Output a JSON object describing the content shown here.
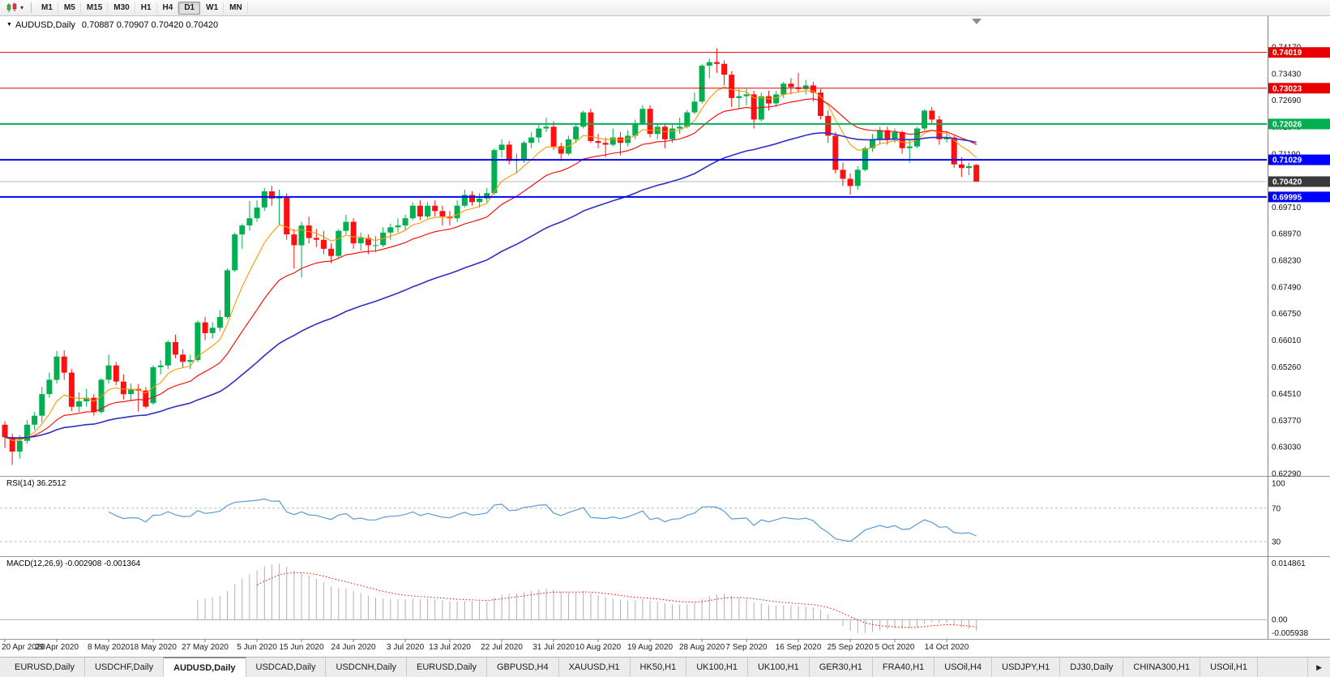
{
  "toolbar": {
    "chart_type_icon": "candlestick-chart-icon",
    "dropdown_icon": "▾",
    "timeframes": [
      "M1",
      "M5",
      "M15",
      "M30",
      "H1",
      "H4",
      "D1",
      "W1",
      "MN"
    ],
    "active_timeframe": "D1"
  },
  "chart": {
    "symbol_label": "AUDUSD,Daily",
    "ohlc_label": "0.70887 0.70907 0.70420 0.70420",
    "dropdown_icon": "▼"
  },
  "chart_data": {
    "type": "candlestick",
    "symbol": "AUDUSD",
    "timeframe": "Daily",
    "title": "AUDUSD,Daily",
    "ohlc_current": {
      "open": 0.70887,
      "high": 0.70907,
      "low": 0.7042,
      "close": 0.7042
    },
    "candle_colors": {
      "bull": "#00B050",
      "bear": "#FF1010"
    },
    "candles": [
      [
        0.6365,
        0.6375,
        0.63,
        0.633
      ],
      [
        0.633,
        0.634,
        0.6253,
        0.629
      ],
      [
        0.629,
        0.6335,
        0.627,
        0.632
      ],
      [
        0.632,
        0.6378,
        0.6312,
        0.6365
      ],
      [
        0.6365,
        0.64,
        0.635,
        0.639
      ],
      [
        0.639,
        0.647,
        0.6372,
        0.645
      ],
      [
        0.645,
        0.651,
        0.644,
        0.649
      ],
      [
        0.649,
        0.657,
        0.648,
        0.6555
      ],
      [
        0.6555,
        0.6572,
        0.649,
        0.651
      ],
      [
        0.651,
        0.652,
        0.6403,
        0.6415
      ],
      [
        0.6415,
        0.6455,
        0.64,
        0.643
      ],
      [
        0.643,
        0.6465,
        0.6415,
        0.644
      ],
      [
        0.644,
        0.645,
        0.639,
        0.64
      ],
      [
        0.64,
        0.6495,
        0.6395,
        0.649
      ],
      [
        0.649,
        0.656,
        0.648,
        0.653
      ],
      [
        0.653,
        0.654,
        0.6475,
        0.6485
      ],
      [
        0.6485,
        0.6505,
        0.6435,
        0.645
      ],
      [
        0.645,
        0.648,
        0.643,
        0.6465
      ],
      [
        0.6465,
        0.6478,
        0.6402,
        0.646
      ],
      [
        0.646,
        0.647,
        0.641,
        0.6415
      ],
      [
        0.6425,
        0.653,
        0.642,
        0.6525
      ],
      [
        0.6525,
        0.6545,
        0.6505,
        0.653
      ],
      [
        0.653,
        0.66,
        0.652,
        0.6595
      ],
      [
        0.6595,
        0.6616,
        0.655,
        0.656
      ],
      [
        0.656,
        0.6575,
        0.6525,
        0.654
      ],
      [
        0.654,
        0.656,
        0.652,
        0.6545
      ],
      [
        0.6545,
        0.6655,
        0.654,
        0.665
      ],
      [
        0.665,
        0.6665,
        0.66,
        0.662
      ],
      [
        0.662,
        0.665,
        0.6605,
        0.6635
      ],
      [
        0.6635,
        0.6684,
        0.6625,
        0.6665
      ],
      [
        0.6665,
        0.68,
        0.666,
        0.6795
      ],
      [
        0.6795,
        0.69,
        0.679,
        0.6895
      ],
      [
        0.6895,
        0.6925,
        0.6855,
        0.692
      ],
      [
        0.692,
        0.6988,
        0.6905,
        0.694
      ],
      [
        0.694,
        0.699,
        0.693,
        0.697
      ],
      [
        0.697,
        0.7025,
        0.696,
        0.7015
      ],
      [
        0.7015,
        0.703,
        0.6975,
        0.6995
      ],
      [
        0.6995,
        0.702,
        0.692,
        0.7
      ],
      [
        0.7,
        0.701,
        0.688,
        0.6895
      ],
      [
        0.6895,
        0.691,
        0.68,
        0.6865
      ],
      [
        0.6865,
        0.693,
        0.6775,
        0.692
      ],
      [
        0.692,
        0.6945,
        0.687,
        0.6885
      ],
      [
        0.6885,
        0.691,
        0.686,
        0.688
      ],
      [
        0.688,
        0.6905,
        0.684,
        0.6855
      ],
      [
        0.6855,
        0.687,
        0.6815,
        0.6835
      ],
      [
        0.6835,
        0.691,
        0.683,
        0.6905
      ],
      [
        0.6905,
        0.695,
        0.6895,
        0.693
      ],
      [
        0.693,
        0.694,
        0.6855,
        0.687
      ],
      [
        0.687,
        0.69,
        0.685,
        0.6885
      ],
      [
        0.6885,
        0.6895,
        0.684,
        0.6865
      ],
      [
        0.6865,
        0.689,
        0.6845,
        0.6865
      ],
      [
        0.6865,
        0.6915,
        0.686,
        0.69
      ],
      [
        0.69,
        0.6925,
        0.688,
        0.6915
      ],
      [
        0.6915,
        0.694,
        0.69,
        0.692
      ],
      [
        0.692,
        0.695,
        0.6905,
        0.694
      ],
      [
        0.694,
        0.6985,
        0.6935,
        0.6975
      ],
      [
        0.6975,
        0.699,
        0.6935,
        0.6945
      ],
      [
        0.6945,
        0.6985,
        0.694,
        0.6975
      ],
      [
        0.6975,
        0.699,
        0.6945,
        0.696
      ],
      [
        0.696,
        0.6975,
        0.692,
        0.6945
      ],
      [
        0.6945,
        0.696,
        0.692,
        0.694
      ],
      [
        0.694,
        0.699,
        0.693,
        0.6975
      ],
      [
        0.6975,
        0.702,
        0.697,
        0.7005
      ],
      [
        0.7005,
        0.7015,
        0.6975,
        0.6985
      ],
      [
        0.6985,
        0.701,
        0.697,
        0.6995
      ],
      [
        0.6995,
        0.7025,
        0.6985,
        0.701
      ],
      [
        0.701,
        0.7135,
        0.7005,
        0.713
      ],
      [
        0.713,
        0.716,
        0.711,
        0.7145
      ],
      [
        0.7145,
        0.7155,
        0.709,
        0.71
      ],
      [
        0.71,
        0.712,
        0.7065,
        0.7105
      ],
      [
        0.7105,
        0.7155,
        0.7095,
        0.715
      ],
      [
        0.715,
        0.718,
        0.7135,
        0.7165
      ],
      [
        0.7165,
        0.72,
        0.715,
        0.719
      ],
      [
        0.719,
        0.722,
        0.718,
        0.7195
      ],
      [
        0.7195,
        0.721,
        0.713,
        0.714
      ],
      [
        0.714,
        0.715,
        0.71,
        0.712
      ],
      [
        0.712,
        0.717,
        0.7115,
        0.716
      ],
      [
        0.716,
        0.72,
        0.715,
        0.7195
      ],
      [
        0.7195,
        0.724,
        0.719,
        0.7235
      ],
      [
        0.7235,
        0.7245,
        0.715,
        0.7155
      ],
      [
        0.7155,
        0.7175,
        0.7135,
        0.715
      ],
      [
        0.715,
        0.7165,
        0.711,
        0.7145
      ],
      [
        0.7145,
        0.719,
        0.714,
        0.7165
      ],
      [
        0.7165,
        0.718,
        0.7115,
        0.715
      ],
      [
        0.715,
        0.7185,
        0.714,
        0.717
      ],
      [
        0.717,
        0.7215,
        0.716,
        0.7205
      ],
      [
        0.7205,
        0.7255,
        0.72,
        0.7245
      ],
      [
        0.7245,
        0.7255,
        0.7165,
        0.7175
      ],
      [
        0.7175,
        0.7205,
        0.716,
        0.7195
      ],
      [
        0.7195,
        0.7205,
        0.7135,
        0.716
      ],
      [
        0.716,
        0.72,
        0.715,
        0.719
      ],
      [
        0.719,
        0.722,
        0.7175,
        0.7195
      ],
      [
        0.7195,
        0.7242,
        0.719,
        0.7235
      ],
      [
        0.7235,
        0.729,
        0.723,
        0.7265
      ],
      [
        0.7265,
        0.737,
        0.726,
        0.7365
      ],
      [
        0.7365,
        0.7385,
        0.733,
        0.7375
      ],
      [
        0.7375,
        0.7414,
        0.7345,
        0.737
      ],
      [
        0.737,
        0.738,
        0.731,
        0.734
      ],
      [
        0.734,
        0.735,
        0.725,
        0.7275
      ],
      [
        0.7275,
        0.73,
        0.7245,
        0.728
      ],
      [
        0.728,
        0.73,
        0.7255,
        0.7285
      ],
      [
        0.7285,
        0.7295,
        0.719,
        0.7215
      ],
      [
        0.7215,
        0.729,
        0.721,
        0.728
      ],
      [
        0.728,
        0.7295,
        0.724,
        0.726
      ],
      [
        0.726,
        0.7295,
        0.725,
        0.7285
      ],
      [
        0.7285,
        0.732,
        0.7275,
        0.7315
      ],
      [
        0.7315,
        0.733,
        0.7285,
        0.7305
      ],
      [
        0.7305,
        0.7345,
        0.729,
        0.73
      ],
      [
        0.73,
        0.7325,
        0.7285,
        0.731
      ],
      [
        0.731,
        0.732,
        0.7265,
        0.729
      ],
      [
        0.729,
        0.73,
        0.7215,
        0.7225
      ],
      [
        0.7225,
        0.724,
        0.715,
        0.717
      ],
      [
        0.717,
        0.718,
        0.7065,
        0.7075
      ],
      [
        0.7075,
        0.7095,
        0.703,
        0.705
      ],
      [
        0.705,
        0.7065,
        0.7006,
        0.703
      ],
      [
        0.703,
        0.7085,
        0.702,
        0.7075
      ],
      [
        0.7075,
        0.714,
        0.707,
        0.7135
      ],
      [
        0.7135,
        0.7175,
        0.7125,
        0.716
      ],
      [
        0.716,
        0.7195,
        0.7145,
        0.7185
      ],
      [
        0.7185,
        0.7195,
        0.7145,
        0.716
      ],
      [
        0.716,
        0.719,
        0.715,
        0.718
      ],
      [
        0.718,
        0.7185,
        0.712,
        0.7135
      ],
      [
        0.7135,
        0.716,
        0.7095,
        0.714
      ],
      [
        0.714,
        0.7195,
        0.7135,
        0.719
      ],
      [
        0.719,
        0.7243,
        0.7185,
        0.724
      ],
      [
        0.724,
        0.725,
        0.7205,
        0.7215
      ],
      [
        0.7215,
        0.7225,
        0.7145,
        0.716
      ],
      [
        0.716,
        0.718,
        0.715,
        0.7165
      ],
      [
        0.7165,
        0.717,
        0.708,
        0.709
      ],
      [
        0.709,
        0.711,
        0.7055,
        0.708
      ],
      [
        0.708,
        0.7095,
        0.706,
        0.7085
      ],
      [
        0.70887,
        0.70907,
        0.7042,
        0.7042
      ]
    ],
    "date_labels": [
      "20 Apr 2020",
      "29 Apr 2020",
      "8 May 2020",
      "18 May 2020",
      "27 May 2020",
      "5 Jun 2020",
      "15 Jun 2020",
      "24 Jun 2020",
      "3 Jul 2020",
      "13 Jul 2020",
      "22 Jul 2020",
      "31 Jul 2020",
      "10 Aug 2020",
      "19 Aug 2020",
      "28 Aug 2020",
      "7 Sep 2020",
      "16 Sep 2020",
      "25 Sep 2020",
      "5 Oct 2020",
      "14 Oct 2020"
    ],
    "date_label_indices": [
      0,
      7,
      14,
      20,
      27,
      34,
      40,
      47,
      54,
      60,
      67,
      74,
      80,
      87,
      94,
      100,
      107,
      114,
      120,
      127
    ],
    "price_axis_ticks": [
      "0.74170",
      "0.73430",
      "0.72690",
      "0.71940",
      "0.71190",
      "0.70450",
      "0.69710",
      "0.68970",
      "0.68230",
      "0.67490",
      "0.66750",
      "0.66010",
      "0.65260",
      "0.64510",
      "0.63770",
      "0.63030",
      "0.62290"
    ],
    "horizontal_lines": [
      {
        "price": 0.74019,
        "label": "0.74019",
        "color": "#E80000",
        "width": 1
      },
      {
        "price": 0.73023,
        "label": "0.73023",
        "color": "#E80000",
        "width": 1
      },
      {
        "price": 0.72026,
        "label": "0.72026",
        "color": "#00B050",
        "width": 2
      },
      {
        "price": 0.71029,
        "label": "0.71029",
        "color": "#0000FF",
        "width": 2
      },
      {
        "price": 0.69995,
        "label": "0.69995",
        "color": "#0000FF",
        "width": 2
      }
    ],
    "current_price": {
      "value": 0.7042,
      "label": "0.70420",
      "line_color": "#B8B8B8",
      "badge_bg": "#3A3A3A"
    },
    "moving_averages": [
      {
        "period": 8,
        "method": "ema",
        "color": "#FF9900"
      },
      {
        "period": 20,
        "method": "ema",
        "color": "#FF0000"
      },
      {
        "period": 50,
        "method": "ema",
        "color": "#2E2EC8"
      }
    ],
    "indicators": {
      "rsi": {
        "label": "RSI(14) 36.2512",
        "period": 14,
        "current": 36.2512,
        "levels": [
          70,
          30
        ],
        "axis_labels": [
          "100",
          "70",
          "30"
        ],
        "line_color": "#5B9BD5"
      },
      "macd": {
        "label": "MACD(12,26,9) -0.002908 -0.001364",
        "fast": 12,
        "slow": 26,
        "signal": 9,
        "current_macd": -0.002908,
        "current_signal": -0.001364,
        "axis_labels": [
          "0.014861",
          "0.00",
          "-0.005938"
        ],
        "histogram_color": "#B0B0B0",
        "signal_color": "#FF0000"
      }
    }
  },
  "bottom_tabs": {
    "tabs": [
      "EURUSD,Daily",
      "USDCHF,Daily",
      "AUDUSD,Daily",
      "USDCAD,Daily",
      "USDCNH,Daily",
      "EURUSD,Daily",
      "GBPUSD,H4",
      "XAUUSD,H1",
      "HK50,H1",
      "UK100,H1",
      "UK100,H1",
      "GER30,H1",
      "FRA40,H1",
      "USOil,H4",
      "USDJPY,H1",
      "DJ30,Daily",
      "CHINA300,H1",
      "USOil,H1"
    ],
    "active_index": 2,
    "scroll_right_icon": "▶"
  }
}
